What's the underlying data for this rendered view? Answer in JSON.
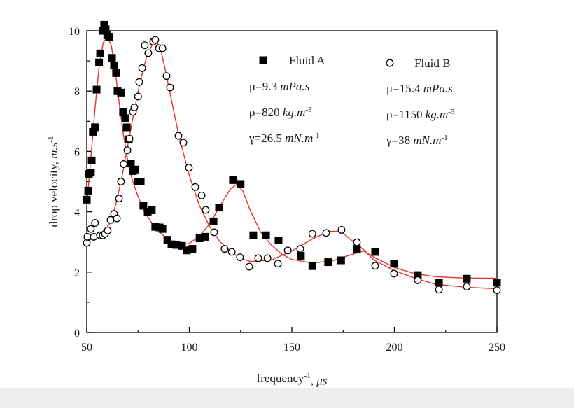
{
  "chart_data": {
    "type": "scatter",
    "xlabel": [
      {
        "text": "frequency"
      },
      {
        "text": "-1",
        "sup": true
      },
      {
        "text": ", "
      },
      {
        "text": "μs",
        "italic": true
      }
    ],
    "ylabel": [
      {
        "text": "drop velocity,  "
      },
      {
        "text": "m.s",
        "italic": true
      },
      {
        "text": "-1",
        "sup": true
      }
    ],
    "xlim": [
      50,
      250
    ],
    "ylim": [
      0,
      10
    ],
    "xticks": [
      50,
      100,
      150,
      200,
      250
    ],
    "yticks": [
      0,
      2,
      4,
      6,
      8,
      10
    ],
    "xminorticks": [
      75,
      125,
      175,
      225
    ],
    "yminorticks": [
      1,
      3,
      5,
      7,
      9
    ],
    "series": [
      {
        "name": "Fluid A",
        "marker": "square",
        "color": "#000000",
        "x": [
          50,
          50.7,
          51,
          52,
          52.4,
          53,
          54,
          54.8,
          56,
          56.5,
          57.8,
          58.5,
          59.2,
          60,
          61,
          62.3,
          63.3,
          64.3,
          65,
          66.7,
          67.7,
          68.8,
          69.5,
          70.5,
          71.5,
          72.5,
          73.5,
          75,
          76.3,
          77.6,
          79.7,
          81.7,
          83.4,
          85.5,
          86.9,
          89.3,
          91.3,
          93.7,
          96.4,
          98.8,
          101.5,
          105,
          107.7,
          111.8,
          114.5,
          121.3,
          125,
          131.2,
          137.4,
          143.5,
          154.4,
          160,
          167.7,
          174,
          181.7,
          190.6,
          199.8,
          211.4,
          221.7,
          235.3,
          250
        ],
        "values": [
          4.4,
          4.7,
          5.25,
          5.3,
          5.7,
          6.65,
          6.8,
          8.05,
          8.95,
          9.25,
          10.0,
          10.2,
          10.05,
          9.85,
          9.8,
          9.1,
          8.85,
          8.6,
          8.0,
          7.95,
          7.3,
          7.1,
          6.8,
          6.4,
          5.6,
          5.35,
          5.4,
          5.0,
          5.0,
          4.2,
          4.0,
          4.05,
          3.5,
          3.48,
          3.43,
          3.07,
          2.92,
          2.9,
          2.87,
          2.72,
          2.77,
          3.12,
          3.17,
          3.68,
          4.14,
          5.05,
          4.92,
          3.22,
          3.22,
          3.05,
          2.54,
          2.2,
          2.33,
          2.39,
          2.77,
          2.67,
          2.28,
          1.9,
          1.65,
          1.78,
          1.65
        ]
      },
      {
        "name": "Fluid B",
        "marker": "circle",
        "color": "#000000",
        "x": [
          50,
          50.3,
          52,
          53.4,
          54,
          56.5,
          57.8,
          58.9,
          60.2,
          61.6,
          63.3,
          64.7,
          65.7,
          66.7,
          68,
          69.8,
          70.8,
          72.5,
          73.2,
          75,
          75.6,
          77,
          78.3,
          80,
          82.4,
          83.4,
          85.2,
          86.9,
          88.9,
          90.6,
          94.7,
          97.1,
          99.8,
          102.9,
          106,
          108,
          112.1,
          117.2,
          120.7,
          124.7,
          129.2,
          133.6,
          138.1,
          143.2,
          148,
          154.1,
          160,
          166.7,
          174.2,
          181.7,
          190.6,
          199.8,
          211.4,
          221.7,
          235.3,
          250
        ],
        "values": [
          2.97,
          3.17,
          3.43,
          3.17,
          3.63,
          3.22,
          3.22,
          3.27,
          3.38,
          3.73,
          3.93,
          3.78,
          4.44,
          5.0,
          5.58,
          6.04,
          6.42,
          7.31,
          7.46,
          7.82,
          8.3,
          8.76,
          9.52,
          9.26,
          9.64,
          9.7,
          9.42,
          9.42,
          8.5,
          8.12,
          6.52,
          6.29,
          5.46,
          4.82,
          4.54,
          4.06,
          3.32,
          2.77,
          2.67,
          2.49,
          2.18,
          2.46,
          2.46,
          2.28,
          2.72,
          2.77,
          3.27,
          3.3,
          3.4,
          2.99,
          2.21,
          1.95,
          1.73,
          1.42,
          1.52,
          1.4
        ]
      }
    ],
    "fit_lines": [
      {
        "color": "#e8312e",
        "x": [
          50,
          52,
          54,
          56,
          58,
          60,
          62,
          64,
          66,
          68,
          70,
          72,
          75,
          78,
          82,
          86,
          90,
          95,
          100,
          105,
          110,
          115,
          120,
          123,
          126,
          130,
          135,
          140,
          145,
          150,
          160,
          170,
          180,
          185,
          190,
          200,
          210,
          220,
          235,
          250
        ],
        "values": [
          4.2,
          5.8,
          7.4,
          8.8,
          9.6,
          9.8,
          9.5,
          8.6,
          7.5,
          6.5,
          5.7,
          5.1,
          4.5,
          4.0,
          3.6,
          3.3,
          3.05,
          2.9,
          2.95,
          3.2,
          3.6,
          4.2,
          4.75,
          4.9,
          4.7,
          4.0,
          3.3,
          2.9,
          2.6,
          2.42,
          2.3,
          2.38,
          2.6,
          2.7,
          2.5,
          2.15,
          1.95,
          1.85,
          1.8,
          1.8
        ]
      },
      {
        "color": "#e8312e",
        "x": [
          50,
          55,
          58,
          61,
          64,
          67,
          70,
          73,
          76,
          79,
          82,
          84,
          86,
          88,
          91,
          95,
          100,
          105,
          110,
          115,
          120,
          125,
          130,
          140,
          150,
          160,
          168,
          174,
          180,
          185,
          190,
          200,
          210,
          220,
          235,
          250
        ],
        "values": [
          3.0,
          3.2,
          3.3,
          3.6,
          4.2,
          5.1,
          6.2,
          7.3,
          8.3,
          9.1,
          9.55,
          9.65,
          9.4,
          8.8,
          7.8,
          6.5,
          5.2,
          4.2,
          3.5,
          3.0,
          2.7,
          2.45,
          2.35,
          2.4,
          2.7,
          3.1,
          3.35,
          3.35,
          3.0,
          2.75,
          2.4,
          2.05,
          1.8,
          1.6,
          1.5,
          1.45
        ]
      }
    ],
    "annotations": [
      [
        [
          {
            "text": "μ=9.3 "
          },
          {
            "text": "mPa.s",
            "italic": true
          }
        ],
        [
          {
            "text": "ρ=820 "
          },
          {
            "text": "kg.m",
            "italic": true
          },
          {
            "text": "-3",
            "sup": true
          }
        ],
        [
          {
            "text": "γ=26.5 "
          },
          {
            "text": "mN.m",
            "italic": true
          },
          {
            "text": "-1",
            "sup": true
          }
        ]
      ],
      [
        [
          {
            "text": "μ=15.4 "
          },
          {
            "text": "mPa.s",
            "italic": true
          }
        ],
        [
          {
            "text": "ρ=1150 "
          },
          {
            "text": "kg.m",
            "italic": true
          },
          {
            "text": "-3",
            "sup": true
          }
        ],
        [
          {
            "text": "γ=38 "
          },
          {
            "text": "mN.m",
            "italic": true
          },
          {
            "text": "-1",
            "sup": true
          }
        ]
      ]
    ]
  }
}
